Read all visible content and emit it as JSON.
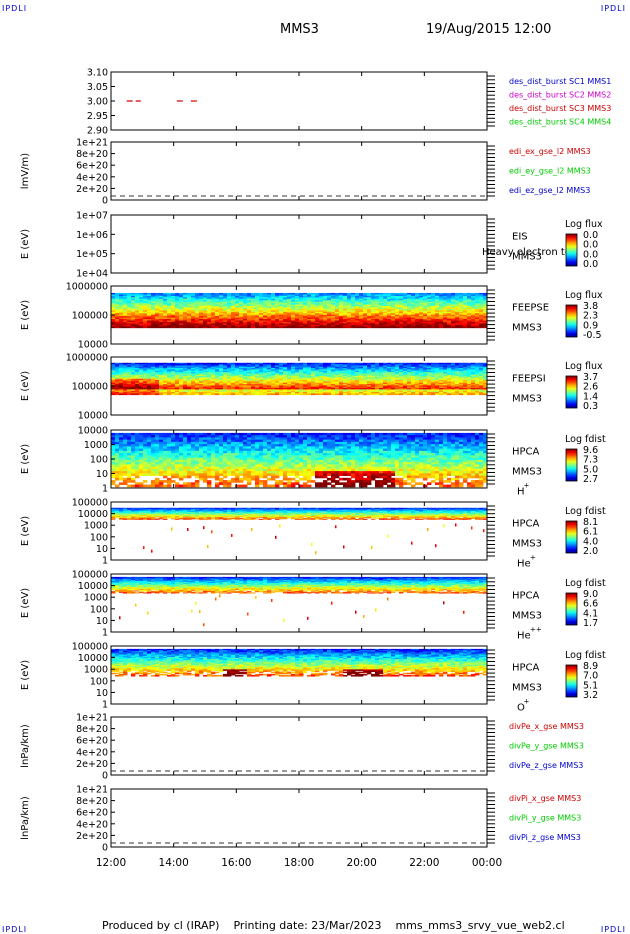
{
  "header": {
    "corner_left": "IPDLI",
    "corner_right": "IPDLI",
    "title": "MMS3",
    "datetime": "19/Aug/2015 12:00"
  },
  "footer": {
    "corner_left": "IPDLI",
    "corner_right": "IPDLI",
    "produced_by": "Produced by cl (IRAP)",
    "printing_date": "Printing date: 23/Mar/2023",
    "file": "mms_mms3_srvy_vue_web2.cl"
  },
  "colors": {
    "frame": "#000000",
    "blue": "#0000cc",
    "magenta": "#cc00cc",
    "red": "#cc0000",
    "green": "#00cc00",
    "dash": "#333333"
  },
  "chart_data": [
    {
      "type": "line",
      "name": "des_dist_burst",
      "yticks": [
        "3.10",
        "3.05",
        "3.00",
        "2.95",
        "2.90"
      ],
      "ylim": [
        2.9,
        3.1
      ],
      "segments_hours": [
        [
          12.5,
          12.95
        ],
        [
          14.1,
          14.3
        ],
        [
          14.55,
          14.8
        ]
      ],
      "segment_value": 3.0,
      "legend": [
        {
          "text": "des_dist_burst SC1 MMS1",
          "color": "blue"
        },
        {
          "text": "des_dist_burst SC2 MMS2",
          "color": "magenta"
        },
        {
          "text": "des_dist_burst SC3 MMS3",
          "color": "red"
        },
        {
          "text": "des_dist_burst SC4 MMS4",
          "color": "green"
        }
      ]
    },
    {
      "type": "line",
      "name": "edi",
      "ylabel": "lmV/m)",
      "yticks": [
        "1e+21",
        "8e+20",
        "6e+20",
        "4e+20",
        "2e+20",
        "0"
      ],
      "zero_line": true,
      "legend": [
        {
          "text": "edi_ex_gse_l2 MMS3",
          "color": "red"
        },
        {
          "text": "edi_ey_gse_l2 MMS3",
          "color": "green"
        },
        {
          "text": "edi_ez_gse_l2 MMS3",
          "color": "blue"
        }
      ]
    },
    {
      "type": "heatmap",
      "name": "eis",
      "ylabel": "E (eV)",
      "yticks": [
        "1e+07",
        "1e+06",
        "1e+05",
        "1e+04"
      ],
      "labels": [
        "EIS",
        "MMS3"
      ],
      "overlay_label": "Heavy electron to",
      "colorbar_title": "Log flux",
      "colorbar_ticks": [
        "0.0",
        "0.0",
        "0.0",
        "0.0"
      ],
      "empty": true
    },
    {
      "type": "heatmap",
      "name": "feeps_e",
      "ylabel": "E (eV)",
      "yticks": [
        "1000000",
        "100000",
        "10000"
      ],
      "labels": [
        "FEEPSE",
        "MMS3"
      ],
      "colorbar_title": "Log flux",
      "colorbar_ticks": [
        "3.8",
        "2.3",
        "0.9",
        "-0.5"
      ]
    },
    {
      "type": "heatmap",
      "name": "feeps_i",
      "ylabel": "E (eV)",
      "yticks": [
        "1000000",
        "100000",
        "10000"
      ],
      "labels": [
        "FEEPSI",
        "MMS3"
      ],
      "colorbar_title": "Log flux",
      "colorbar_ticks": [
        "3.7",
        "2.6",
        "1.4",
        "0.3"
      ]
    },
    {
      "type": "heatmap",
      "name": "hpca_h",
      "ylabel": "E (eV)",
      "yticks": [
        "10000",
        "1000",
        "100",
        "10",
        "1"
      ],
      "labels": [
        "HPCA",
        "MMS3"
      ],
      "species": "H",
      "charge": "+",
      "colorbar_title": "Log fdist",
      "colorbar_ticks": [
        "9.6",
        "7.3",
        "5.0",
        "2.7"
      ]
    },
    {
      "type": "heatmap",
      "name": "hpca_he",
      "ylabel": "E (eV)",
      "yticks": [
        "100000",
        "10000",
        "1000",
        "100",
        "10",
        "1"
      ],
      "labels": [
        "HPCA",
        "MMS3"
      ],
      "species": "He",
      "charge": "+",
      "colorbar_title": "Log fdist",
      "colorbar_ticks": [
        "8.1",
        "6.1",
        "4.0",
        "2.0"
      ]
    },
    {
      "type": "heatmap",
      "name": "hpca_he2",
      "ylabel": "E (eV)",
      "yticks": [
        "100000",
        "10000",
        "1000",
        "100",
        "10",
        "1"
      ],
      "labels": [
        "HPCA",
        "MMS3"
      ],
      "species": "He",
      "charge": "++",
      "colorbar_title": "Log fdist",
      "colorbar_ticks": [
        "9.0",
        "6.6",
        "4.1",
        "1.7"
      ]
    },
    {
      "type": "heatmap",
      "name": "hpca_o",
      "ylabel": "E (eV)",
      "yticks": [
        "100000",
        "10000",
        "1000",
        "100",
        "10",
        "1"
      ],
      "labels": [
        "HPCA",
        "MMS3"
      ],
      "species": "O",
      "charge": "+",
      "colorbar_title": "Log fdist",
      "colorbar_ticks": [
        "8.9",
        "7.0",
        "5.1",
        "3.2"
      ]
    },
    {
      "type": "line",
      "name": "divpe",
      "ylabel": "lnPa/km)",
      "yticks": [
        "1e+21",
        "8e+20",
        "6e+20",
        "4e+20",
        "2e+20",
        "0"
      ],
      "zero_line": true,
      "legend": [
        {
          "text": "divPe_x_gse MMS3",
          "color": "red"
        },
        {
          "text": "divPe_y_gse MMS3",
          "color": "green"
        },
        {
          "text": "divPe_z_gse MMS3",
          "color": "blue"
        }
      ]
    },
    {
      "type": "line",
      "name": "divpi",
      "ylabel": "lnPa/km)",
      "yticks": [
        "1e+21",
        "8e+20",
        "6e+20",
        "4e+20",
        "2e+20",
        "0"
      ],
      "zero_line": true,
      "legend": [
        {
          "text": "divPi_x_gse MMS3",
          "color": "red"
        },
        {
          "text": "divPi_y_gse MMS3",
          "color": "green"
        },
        {
          "text": "divPi_z_gse MMS3",
          "color": "blue"
        }
      ]
    }
  ],
  "x_axis": {
    "ticks": [
      "12:00",
      "14:00",
      "16:00",
      "18:00",
      "20:00",
      "22:00",
      "00:00"
    ],
    "range_hours": [
      12,
      24
    ]
  }
}
